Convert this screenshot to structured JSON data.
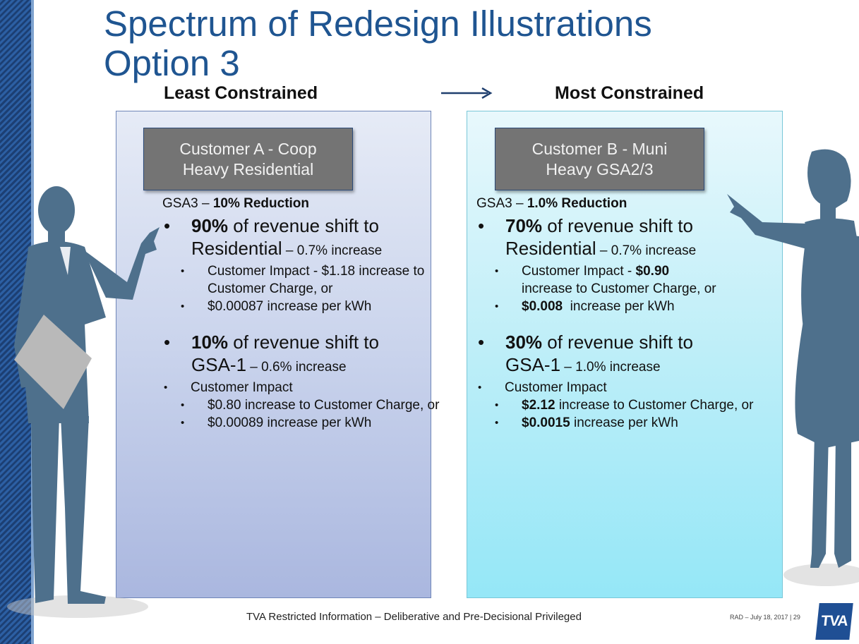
{
  "slide": {
    "title_line1": "Spectrum of Redesign Illustrations",
    "title_line2": "Option 3",
    "header_left": "Least Constrained",
    "header_right": "Most Constrained"
  },
  "left": {
    "box_line1": "Customer A - Coop",
    "box_line2": "Heavy Residential",
    "gsa3_prefix": "GSA3 – ",
    "gsa3_bold": "10% Reduction",
    "b1_pct": "90%",
    "b1_text": " of revenue shift to",
    "b1_line2": "Residential",
    "b1_small": " – 0.7% increase",
    "b1_sub1": "Customer Impact - $1.18 increase to Customer Charge, or",
    "b1_sub2": "$0.00087 increase per kWh",
    "b2_pct": "10%",
    "b2_text": " of revenue shift to",
    "b2_line2": "GSA-1",
    "b2_small": " – 0.6% increase",
    "b2_impact": "Customer Impact",
    "b2_sub1": "$0.80 increase to Customer Charge, or",
    "b2_sub2": "$0.00089 increase per kWh"
  },
  "right": {
    "box_line1": "Customer B - Muni",
    "box_line2": "Heavy GSA2/3",
    "gsa3_prefix": "GSA3 – ",
    "gsa3_bold": "1.0% Reduction",
    "b1_pct": "70%",
    "b1_text": " of revenue shift to",
    "b1_line2": "Residential",
    "b1_small": " – 0.7% increase",
    "b1_sub1_text": "Customer Impact - ",
    "b1_sub1_bold": "$0.90",
    "b1_sub1_rest": "increase to Customer Charge, or",
    "b1_sub2_bold": "$0.008",
    "b1_sub2_rest": "  increase per kWh",
    "b2_pct": "30%",
    "b2_text": " of revenue shift to",
    "b2_line2": "GSA-1",
    "b2_small": " – 1.0% increase",
    "b2_impact": "Customer Impact",
    "b2_sub1_bold": "$2.12",
    "b2_sub1_rest": " increase to Customer Charge, or",
    "b2_sub2_bold": "$0.0015",
    "b2_sub2_rest": " increase per kWh"
  },
  "footer": {
    "center": "TVA Restricted Information – Deliberative and Pre-Decisional Privileged",
    "right": "RAD – July 18, 2017  |  29",
    "logo": "TVA"
  },
  "icons": {
    "bullet": "•",
    "arrow": "arrow-right-icon"
  },
  "colors": {
    "title": "#1f5591",
    "silhouette": "#4e708c",
    "box": "#747474"
  }
}
